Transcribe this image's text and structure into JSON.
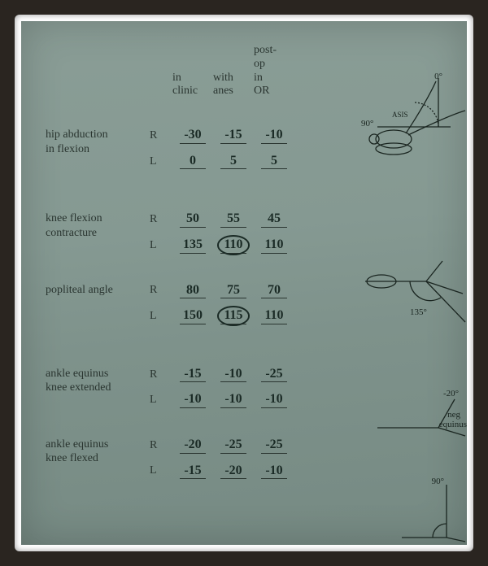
{
  "columns": {
    "c1": "in\nclinic",
    "c2": "with\nanes",
    "c3": "post-\nop\nin\nOR"
  },
  "measurements": [
    {
      "label": "hip abduction\nin flexion",
      "R": {
        "c1": "-30",
        "c2": "-15",
        "c3": "-10"
      },
      "L": {
        "c1": "0",
        "c2": "5",
        "c3": "5"
      }
    },
    {
      "label": "knee flexion\ncontracture",
      "R": {
        "c1": "50",
        "c2": "55",
        "c3": "45"
      },
      "L": {
        "c1": "135",
        "c2": "110",
        "c3": "110",
        "circled": [
          "c2"
        ]
      }
    },
    {
      "label": "popliteal angle",
      "R": {
        "c1": "80",
        "c2": "75",
        "c3": "70"
      },
      "L": {
        "c1": "150",
        "c2": "115",
        "c3": "110",
        "circled": [
          "c2"
        ]
      }
    },
    {
      "label": "ankle equinus\nknee extended",
      "R": {
        "c1": "-15",
        "c2": "-10",
        "c3": "-25"
      },
      "L": {
        "c1": "-10",
        "c2": "-10",
        "c3": "-10"
      }
    },
    {
      "label": "ankle equinus\nknee flexed",
      "R": {
        "c1": "-20",
        "c2": "-25",
        "c3": "-25"
      },
      "L": {
        "c1": "-15",
        "c2": "-20",
        "c3": "-10"
      }
    }
  ],
  "diagrams": {
    "d1": {
      "zero": "0°",
      "ninety": "90°",
      "asis": "ASIS"
    },
    "d2": {
      "angle": "135°"
    },
    "d3": {
      "neg20": "-20°",
      "neg": "neg",
      "equinus": "equinus"
    },
    "d4": {
      "ninety": "90°"
    }
  },
  "style": {
    "paper_bg": "#859992",
    "text_color": "#2a3530",
    "hand_color": "#1a2a25",
    "frame_outer": "#2a2520",
    "frame_inner": "#ffffff",
    "printed_fontsize": 14,
    "hand_fontsize": 16
  }
}
